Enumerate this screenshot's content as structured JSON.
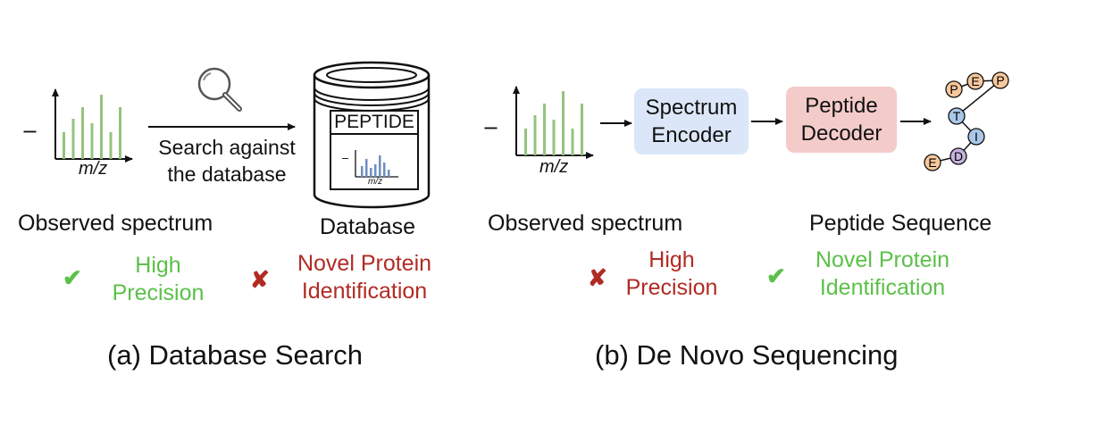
{
  "panel_a": {
    "axis_y": "I",
    "axis_x": "m/z",
    "arrow_text_line1": "Search against",
    "arrow_text_line2": "the database",
    "db_word": "PEPTIDE",
    "db_mini_y": "I",
    "db_mini_x": "m/z",
    "label_spectrum": "Observed spectrum",
    "label_db": "Database",
    "check_mark": "✔",
    "cross_mark": "✘",
    "status_good_line1": "High",
    "status_good_line2": "Precision",
    "status_bad_line1": "Novel Protein",
    "status_bad_line2": "Identification",
    "caption": "(a) Database Search"
  },
  "panel_b": {
    "axis_y": "I",
    "axis_x": "m/z",
    "encoder_line1": "Spectrum",
    "encoder_line2": "Encoder",
    "decoder_line1": "Peptide",
    "decoder_line2": "Decoder",
    "beads": [
      "P",
      "E",
      "P",
      "T",
      "I",
      "D",
      "E"
    ],
    "label_spectrum": "Observed spectrum",
    "label_peptide": "Peptide Sequence",
    "cross_mark": "✘",
    "check_mark": "✔",
    "status_bad_line1": "High",
    "status_bad_line2": "Precision",
    "status_good_line1": "Novel Protein",
    "status_good_line2": "Identification",
    "caption": "(b) De Novo Sequencing"
  },
  "colors": {
    "green": "#5cc04a",
    "red": "#b12b24",
    "bar_green": "#93c47d",
    "bar_blue": "#6d8fbf",
    "encoder_fill": "#dbe7f8",
    "decoder_fill": "#f3cbc9",
    "bead_orange": "#f7c89b",
    "bead_blue": "#a9c8e8",
    "bead_purple": "#c5b3dd"
  }
}
